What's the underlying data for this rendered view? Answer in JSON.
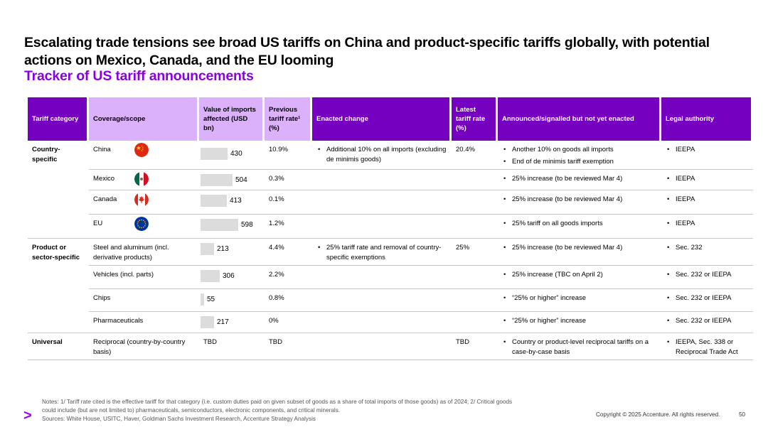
{
  "title": "Escalating trade tensions see broad US tariffs on China and product-specific tariffs globally, with potential actions on Mexico, Canada, and the EU looming",
  "subtitle": "Tracker of US tariff announcements",
  "headers": {
    "category": "Tariff category",
    "coverage": "Coverage/scope",
    "value": "Value of imports affected (USD bn)",
    "previous": "Previous tariff rate¹ (%)",
    "enacted": "Enacted change",
    "latest": "Latest tariff rate (%)",
    "announced": "Announced/signalled but not yet enacted",
    "legal": "Legal authority"
  },
  "colors": {
    "dark_header": "#7500c0",
    "light_header": "#dcb1fb",
    "subtitle": "#8a00e6",
    "bar": "#dcdcdc"
  },
  "rows": [
    {
      "category": "Country-specific",
      "coverage": "China",
      "flag": "china-flag-icon",
      "value": 430,
      "value_label": "430",
      "previous": "10.9%",
      "enacted": [
        "Additional 10% on all imports (excluding de minimis goods)"
      ],
      "latest": "20.4%",
      "announced": [
        "Another 10% on goods all imports",
        "End of de minimis tariff exemption"
      ],
      "legal": [
        "IEEPA"
      ]
    },
    {
      "category": "",
      "coverage": "Mexico",
      "flag": "mexico-flag-icon",
      "value": 504,
      "value_label": "504",
      "previous": "0.3%",
      "enacted": [],
      "latest": "",
      "announced": [
        "25% increase (to be reviewed Mar 4)"
      ],
      "legal": [
        "IEEPA"
      ]
    },
    {
      "category": "",
      "coverage": "Canada",
      "flag": "canada-flag-icon",
      "value": 413,
      "value_label": "413",
      "previous": "0.1%",
      "enacted": [],
      "latest": "",
      "announced": [
        "25% increase (to be reviewed Mar 4)"
      ],
      "legal": [
        "IEEPA"
      ]
    },
    {
      "category": "",
      "coverage": "EU",
      "flag": "eu-flag-icon",
      "value": 598,
      "value_label": "598",
      "previous": "1.2%",
      "enacted": [],
      "latest": "",
      "announced": [
        "25% tariff on all goods imports"
      ],
      "legal": [
        "IEEPA"
      ]
    },
    {
      "category": "Product or sector-specific",
      "coverage": "Steel and aluminum (incl. derivative products)",
      "flag": "",
      "value": 213,
      "value_label": "213",
      "previous": "4.4%",
      "enacted": [
        "25% tariff rate and removal of country-specific exemptions"
      ],
      "latest": "25%",
      "announced": [
        "25% increase (to be reviewed Mar 4)"
      ],
      "legal": [
        "Sec. 232"
      ]
    },
    {
      "category": "",
      "coverage": "Vehicles (incl. parts)",
      "flag": "",
      "value": 306,
      "value_label": "306",
      "previous": "2.2%",
      "enacted": [],
      "latest": "",
      "announced": [
        "25% increase (TBC on April 2)"
      ],
      "legal": [
        "Sec. 232 or IEEPA"
      ]
    },
    {
      "category": "",
      "coverage": "Chips",
      "flag": "",
      "value": 55,
      "value_label": "55",
      "previous": "0.8%",
      "enacted": [],
      "latest": "",
      "announced": [
        "“25% or higher” increase"
      ],
      "legal": [
        "Sec. 232 or IEEPA"
      ]
    },
    {
      "category": "",
      "coverage": "Pharmaceuticals",
      "flag": "",
      "value": 217,
      "value_label": "217",
      "previous": "0%",
      "enacted": [],
      "latest": "",
      "announced": [
        "“25% or higher” increase"
      ],
      "legal": [
        "Sec. 232 or IEEPA"
      ]
    },
    {
      "category": "Universal",
      "coverage": "Reciprocal (country-by-country basis)",
      "flag": "",
      "value": null,
      "value_label": "TBD",
      "previous": "TBD",
      "enacted": [],
      "latest": "TBD",
      "announced": [
        "Country or product-level reciprocal tariffs on a case-by-case basis"
      ],
      "legal": [
        "IEEPA, Sec. 338 or Reciprocal Trade Act"
      ]
    }
  ],
  "notes": [
    "Notes: 1/ Tariff rate cited is the effective tariff for that category (i.e. custom duties paid on given subset of goods as a share of total imports of those goods) as of 2024; 2/ Critical goods",
    "could include (but are not limited to) pharmaceuticals, semiconductors, electronic components, and critical minerals.",
    "Sources: White House, USITC, Haver, Goldman Sachs Investment Research, Accenture Strategy Analysis"
  ],
  "logo": ">",
  "copyright": "Copyright © 2025 Accenture. All rights reserved.",
  "page_number": "50"
}
